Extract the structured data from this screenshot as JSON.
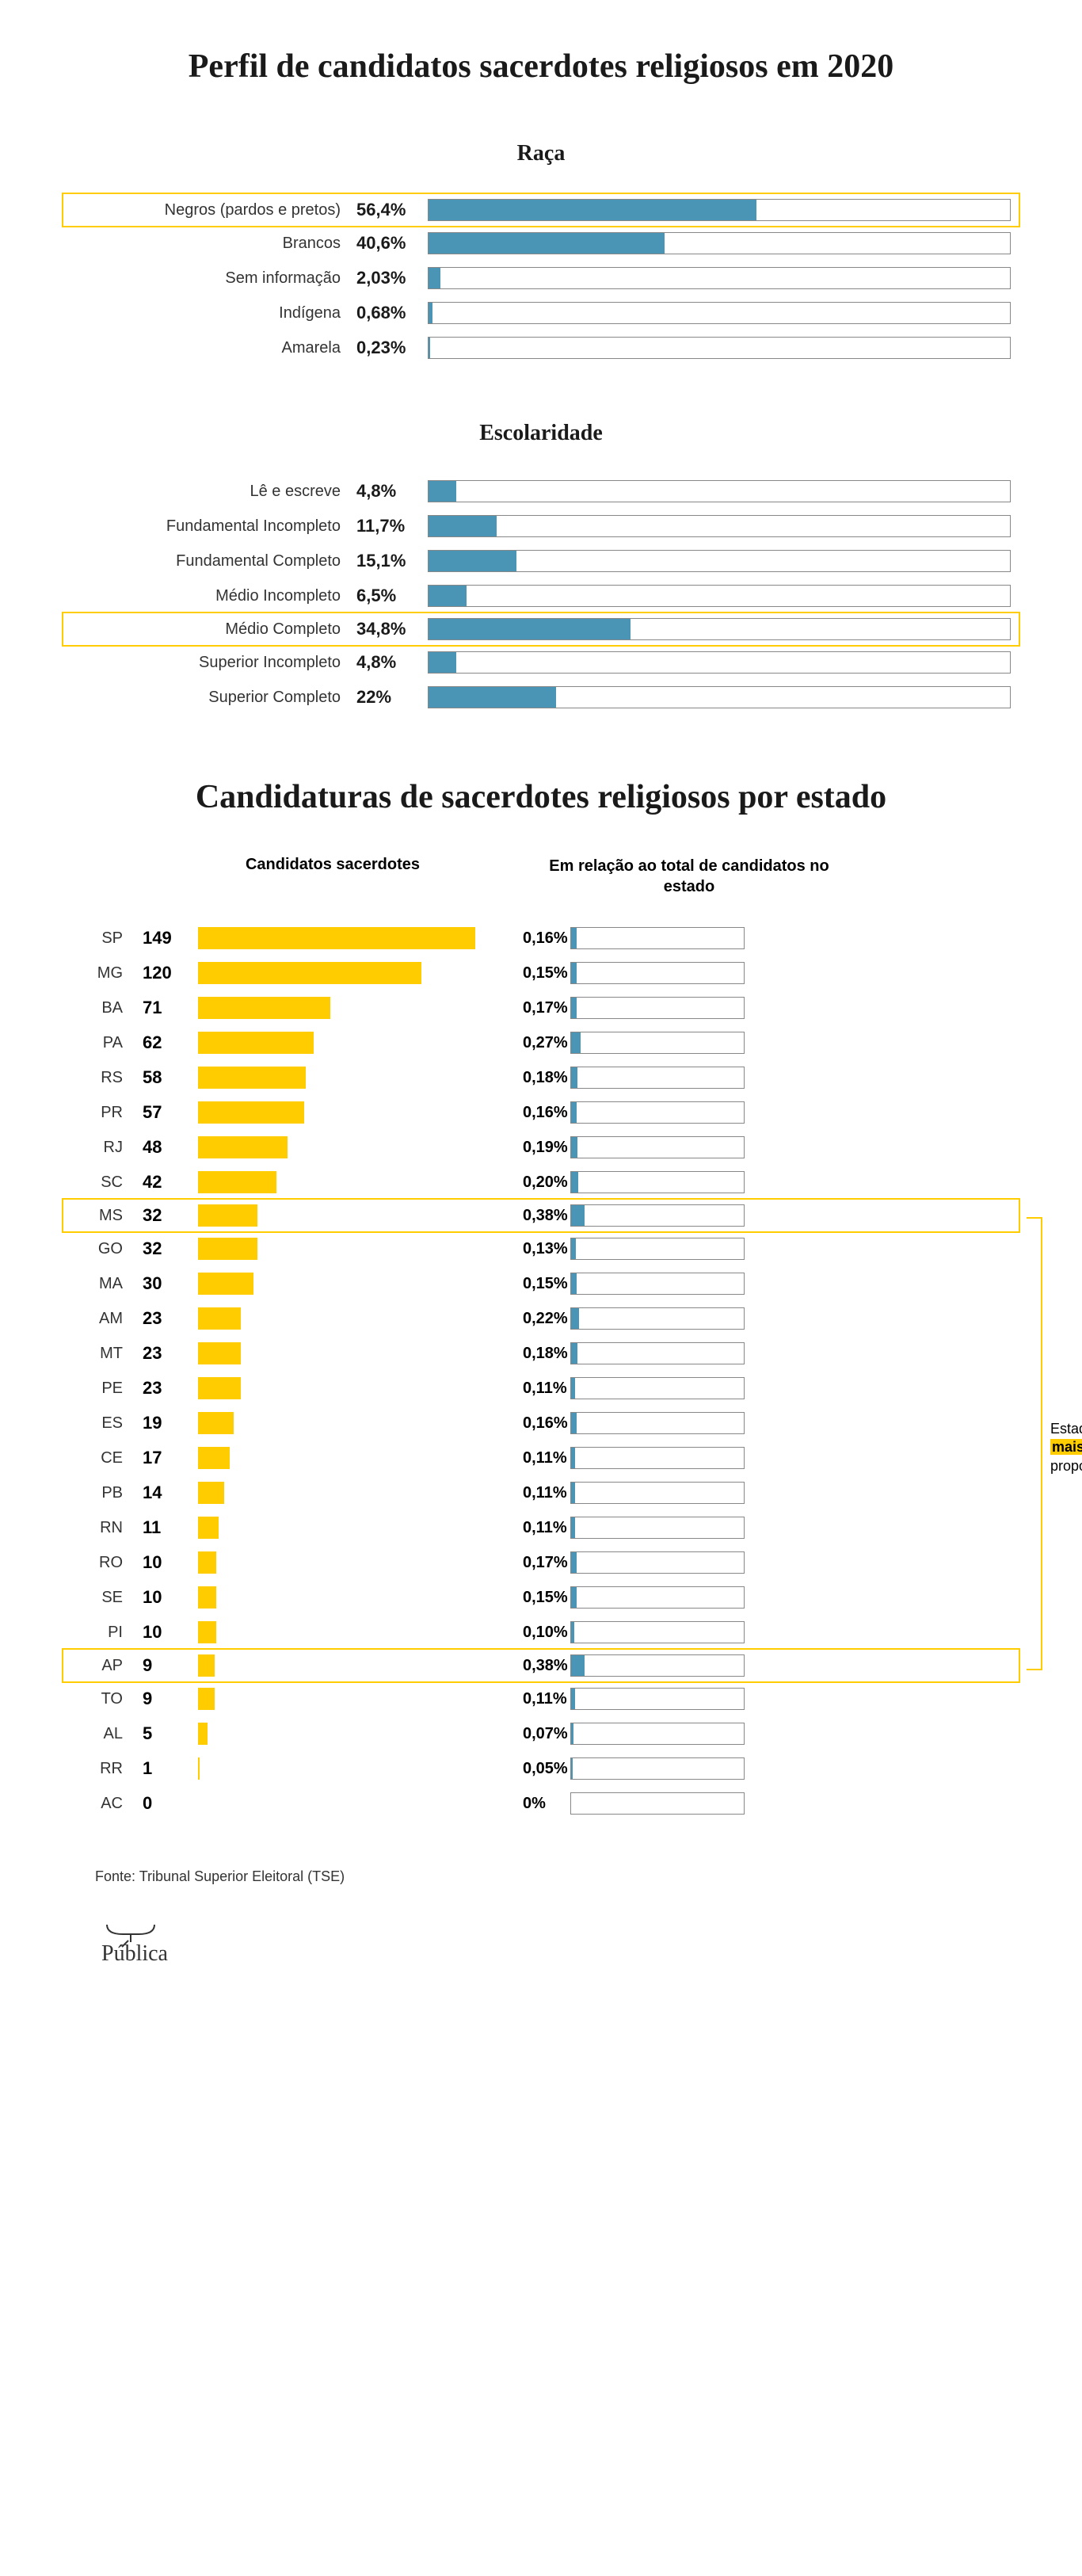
{
  "main_title": "Perfil de candidatos sacerdotes religiosos em 2020",
  "race": {
    "title": "Raça",
    "bar_color": "#4a94b5",
    "track_border": "#888888",
    "highlight_border": "#ffcc00",
    "label_fontsize": 20,
    "value_fontsize": 22,
    "max_pct": 100,
    "rows": [
      {
        "label": "Negros (pardos e pretos)",
        "value_text": "56,4%",
        "pct": 56.4,
        "highlighted": true
      },
      {
        "label": "Brancos",
        "value_text": "40,6%",
        "pct": 40.6,
        "highlighted": false
      },
      {
        "label": "Sem informação",
        "value_text": "2,03%",
        "pct": 2.03,
        "highlighted": false
      },
      {
        "label": "Indígena",
        "value_text": "0,68%",
        "pct": 0.68,
        "highlighted": false
      },
      {
        "label": "Amarela",
        "value_text": "0,23%",
        "pct": 0.23,
        "highlighted": false
      }
    ]
  },
  "education": {
    "title": "Escolaridade",
    "bar_color": "#4a94b5",
    "track_border": "#888888",
    "highlight_border": "#ffcc00",
    "max_pct": 100,
    "rows": [
      {
        "label": "Lê e escreve",
        "value_text": "4,8%",
        "pct": 4.8,
        "highlighted": false
      },
      {
        "label": "Fundamental Incompleto",
        "value_text": "11,7%",
        "pct": 11.7,
        "highlighted": false
      },
      {
        "label": "Fundamental Completo",
        "value_text": "15,1%",
        "pct": 15.1,
        "highlighted": false
      },
      {
        "label": "Médio Incompleto",
        "value_text": "6,5%",
        "pct": 6.5,
        "highlighted": false
      },
      {
        "label": "Médio Completo",
        "value_text": "34,8%",
        "pct": 34.8,
        "highlighted": true
      },
      {
        "label": "Superior Incompleto",
        "value_text": "4,8%",
        "pct": 4.8,
        "highlighted": false
      },
      {
        "label": "Superior Completo",
        "value_text": "22%",
        "pct": 22.0,
        "highlighted": false
      }
    ]
  },
  "states_section": {
    "title": "Candidaturas de sacerdotes religiosos por estado",
    "header_left": "Candidatos sacerdotes",
    "header_right": "Em relação ao total de candidatos no estado",
    "count_bar_color": "#ffcc00",
    "pct_bar_color": "#4a94b5",
    "track_border": "#888888",
    "highlight_border": "#ffcc00",
    "count_max": 149,
    "pct_max": 5,
    "annotation": {
      "text_pre": "Estados com",
      "text_hl": "mais sacerdotes",
      "text_post": "proporcionalmente"
    },
    "rows": [
      {
        "code": "SP",
        "count": 149,
        "pct_text": "0,16%",
        "pct": 0.16,
        "highlighted": false
      },
      {
        "code": "MG",
        "count": 120,
        "pct_text": "0,15%",
        "pct": 0.15,
        "highlighted": false
      },
      {
        "code": "BA",
        "count": 71,
        "pct_text": "0,17%",
        "pct": 0.17,
        "highlighted": false
      },
      {
        "code": "PA",
        "count": 62,
        "pct_text": "0,27%",
        "pct": 0.27,
        "highlighted": false
      },
      {
        "code": "RS",
        "count": 58,
        "pct_text": "0,18%",
        "pct": 0.18,
        "highlighted": false
      },
      {
        "code": "PR",
        "count": 57,
        "pct_text": "0,16%",
        "pct": 0.16,
        "highlighted": false
      },
      {
        "code": "RJ",
        "count": 48,
        "pct_text": "0,19%",
        "pct": 0.19,
        "highlighted": false
      },
      {
        "code": "SC",
        "count": 42,
        "pct_text": "0,20%",
        "pct": 0.2,
        "highlighted": false
      },
      {
        "code": "MS",
        "count": 32,
        "pct_text": "0,38%",
        "pct": 0.38,
        "highlighted": true
      },
      {
        "code": "GO",
        "count": 32,
        "pct_text": "0,13%",
        "pct": 0.13,
        "highlighted": false
      },
      {
        "code": "MA",
        "count": 30,
        "pct_text": "0,15%",
        "pct": 0.15,
        "highlighted": false
      },
      {
        "code": "AM",
        "count": 23,
        "pct_text": "0,22%",
        "pct": 0.22,
        "highlighted": false
      },
      {
        "code": "MT",
        "count": 23,
        "pct_text": "0,18%",
        "pct": 0.18,
        "highlighted": false
      },
      {
        "code": "PE",
        "count": 23,
        "pct_text": "0,11%",
        "pct": 0.11,
        "highlighted": false
      },
      {
        "code": "ES",
        "count": 19,
        "pct_text": "0,16%",
        "pct": 0.16,
        "highlighted": false
      },
      {
        "code": "CE",
        "count": 17,
        "pct_text": "0,11%",
        "pct": 0.11,
        "highlighted": false
      },
      {
        "code": "PB",
        "count": 14,
        "pct_text": "0,11%",
        "pct": 0.11,
        "highlighted": false
      },
      {
        "code": "RN",
        "count": 11,
        "pct_text": "0,11%",
        "pct": 0.11,
        "highlighted": false
      },
      {
        "code": "RO",
        "count": 10,
        "pct_text": "0,17%",
        "pct": 0.17,
        "highlighted": false
      },
      {
        "code": "SE",
        "count": 10,
        "pct_text": "0,15%",
        "pct": 0.15,
        "highlighted": false
      },
      {
        "code": "PI",
        "count": 10,
        "pct_text": "0,10%",
        "pct": 0.1,
        "highlighted": false
      },
      {
        "code": "AP",
        "count": 9,
        "pct_text": "0,38%",
        "pct": 0.38,
        "highlighted": true
      },
      {
        "code": "TO",
        "count": 9,
        "pct_text": "0,11%",
        "pct": 0.11,
        "highlighted": false
      },
      {
        "code": "AL",
        "count": 5,
        "pct_text": "0,07%",
        "pct": 0.07,
        "highlighted": false
      },
      {
        "code": "RR",
        "count": 1,
        "pct_text": "0,05%",
        "pct": 0.05,
        "highlighted": false
      },
      {
        "code": "AC",
        "count": 0,
        "pct_text": "0%",
        "pct": 0,
        "highlighted": false
      }
    ]
  },
  "source": "Fonte: Tribunal Superior Eleitoral (TSE)",
  "logo_text": "Pública"
}
